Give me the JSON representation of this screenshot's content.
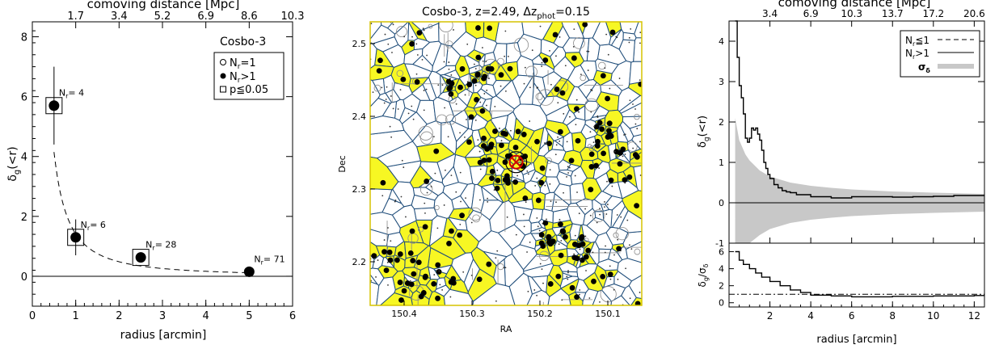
{
  "chart_data": [
    {
      "type": "scatter",
      "panel": "left",
      "top_axis_label": "comoving distance [Mpc]",
      "top_ticks": [
        "1.7",
        "3.4",
        "5.2",
        "6.9",
        "8.6",
        "10.3"
      ],
      "top_tick_radius": [
        1,
        2,
        3,
        4,
        5,
        6
      ],
      "xlabel": "radius [arcmin]",
      "ylabel_main": "δ",
      "ylabel_sub": "g",
      "ylabel_tail": "(<r)",
      "xlim": [
        0,
        6
      ],
      "ylim": [
        -1,
        8.5
      ],
      "xticks": [
        0,
        1,
        2,
        3,
        4,
        5,
        6
      ],
      "yticks": [
        0,
        2,
        4,
        6,
        8
      ],
      "points": [
        {
          "x": 0.5,
          "y": 5.7,
          "err": 1.3,
          "label_main": "N",
          "label_sub": "r",
          "label_val": "= 4",
          "significant": true
        },
        {
          "x": 1.0,
          "y": 1.3,
          "err": 0.6,
          "label_main": "N",
          "label_sub": "r",
          "label_val": "= 6",
          "significant": true
        },
        {
          "x": 2.5,
          "y": 0.63,
          "err": 0.0,
          "label_main": "N",
          "label_sub": "r",
          "label_val": "= 28",
          "significant": true
        },
        {
          "x": 5.0,
          "y": 0.15,
          "err": 0.0,
          "label_main": "N",
          "label_sub": "r",
          "label_val": "= 71",
          "significant": false
        }
      ],
      "reference_line_y": 0,
      "legend": {
        "title": "Cosbo-3",
        "entries": [
          {
            "symbol": "open-circle",
            "label_main": "N",
            "label_sub": "r",
            "label_tail": "=1"
          },
          {
            "symbol": "filled-circle",
            "label_main": "N",
            "label_sub": "r",
            "label_tail": ">1"
          },
          {
            "symbol": "open-square",
            "label_main": "p≦0.05",
            "label_sub": "",
            "label_tail": ""
          }
        ]
      }
    },
    {
      "type": "map",
      "panel": "middle",
      "title_text": "Cosbo-3, z=2.49, Δz",
      "title_sub": "phot",
      "title_tail": "=0.15",
      "xlabel": "RA",
      "ylabel": "Dec",
      "xlim": [
        150.45,
        150.05
      ],
      "ylim": [
        2.14,
        2.53
      ],
      "xticks": [
        "150.4",
        "150.3",
        "150.2",
        "150.1"
      ],
      "xtick_values": [
        150.4,
        150.3,
        150.2,
        150.1
      ],
      "yticks": [
        "2.2",
        "2.3",
        "2.4",
        "2.5"
      ],
      "ytick_values": [
        2.2,
        2.3,
        2.4,
        2.5
      ],
      "center": {
        "ra": 150.235,
        "dec": 2.337
      },
      "cell_fill": "#f7f723",
      "edge_color": "#1f4d7a"
    },
    {
      "type": "line",
      "panel": "right-top",
      "top_axis_label": "comoving distance [Mpc]",
      "top_ticks": [
        "3.4",
        "6.9",
        "10.3",
        "13.7",
        "17.2",
        "20.6"
      ],
      "top_tick_radius": [
        2,
        4,
        6,
        8,
        10,
        12
      ],
      "ylabel_main": "δ",
      "ylabel_sub": "g",
      "ylabel_tail": "(<r)",
      "xlim": [
        0,
        12.5
      ],
      "ylim": [
        -1,
        4.5
      ],
      "yticks": [
        -1,
        0,
        1,
        2,
        3,
        4
      ],
      "x": [
        0.3,
        0.4,
        0.5,
        0.6,
        0.7,
        0.8,
        0.9,
        1.0,
        1.1,
        1.2,
        1.3,
        1.4,
        1.5,
        1.6,
        1.7,
        1.8,
        1.9,
        2.0,
        2.2,
        2.4,
        2.6,
        2.8,
        3.0,
        3.3,
        3.6,
        4.0,
        4.5,
        5.0,
        5.5,
        6.0,
        7.0,
        8.0,
        9.0,
        10.0,
        11.0,
        12.0,
        12.5
      ],
      "y": [
        4.5,
        3.6,
        2.9,
        2.6,
        2.2,
        1.6,
        1.5,
        1.6,
        1.85,
        1.8,
        1.85,
        1.7,
        1.55,
        1.3,
        1.0,
        0.85,
        0.7,
        0.6,
        0.45,
        0.37,
        0.3,
        0.27,
        0.25,
        0.2,
        0.2,
        0.15,
        0.15,
        0.12,
        0.12,
        0.15,
        0.15,
        0.14,
        0.15,
        0.16,
        0.18,
        0.18,
        0.18
      ],
      "sigma_x": [
        0.3,
        0.5,
        0.8,
        1.0,
        1.5,
        2.0,
        3.0,
        4.0,
        5.0,
        6.0,
        8.0,
        10.0,
        12.5
      ],
      "sigma_y": [
        2.1,
        1.55,
        1.2,
        1.05,
        0.8,
        0.65,
        0.5,
        0.42,
        0.37,
        0.33,
        0.28,
        0.25,
        0.22
      ],
      "reference_line_y": 0,
      "legend": [
        {
          "style": "dashed",
          "label_main": "N",
          "label_sub": "r",
          "label_tail": "≦1"
        },
        {
          "style": "solid",
          "label_main": "N",
          "label_sub": "r",
          "label_tail": ">1"
        },
        {
          "style": "band",
          "label_main": "σ",
          "label_sub": "δ",
          "label_tail": ""
        }
      ],
      "band_color": "#c8c8c8"
    },
    {
      "type": "line",
      "panel": "right-bottom",
      "xlabel": "radius [arcmin]",
      "ylabel_main": "δ",
      "ylabel_sub": "g",
      "ylabel_tail": "/σ",
      "ylabel_tail_sub": "δ",
      "xlim": [
        0,
        12.5
      ],
      "ylim": [
        -0.5,
        7
      ],
      "xticks": [
        2,
        4,
        6,
        8,
        10,
        12
      ],
      "yticks": [
        0,
        2,
        4,
        6
      ],
      "x": [
        0.3,
        0.5,
        0.7,
        1.0,
        1.3,
        1.6,
        2.0,
        2.5,
        3.0,
        3.5,
        4.0,
        5.0,
        6.0,
        8.0,
        10.0,
        12.0,
        12.5
      ],
      "y": [
        6.0,
        5.0,
        4.5,
        4.0,
        3.5,
        3.0,
        2.5,
        2.0,
        1.5,
        1.2,
        0.9,
        0.8,
        0.7,
        0.75,
        0.8,
        0.85,
        0.85
      ],
      "reference_line_y": 1
    }
  ]
}
